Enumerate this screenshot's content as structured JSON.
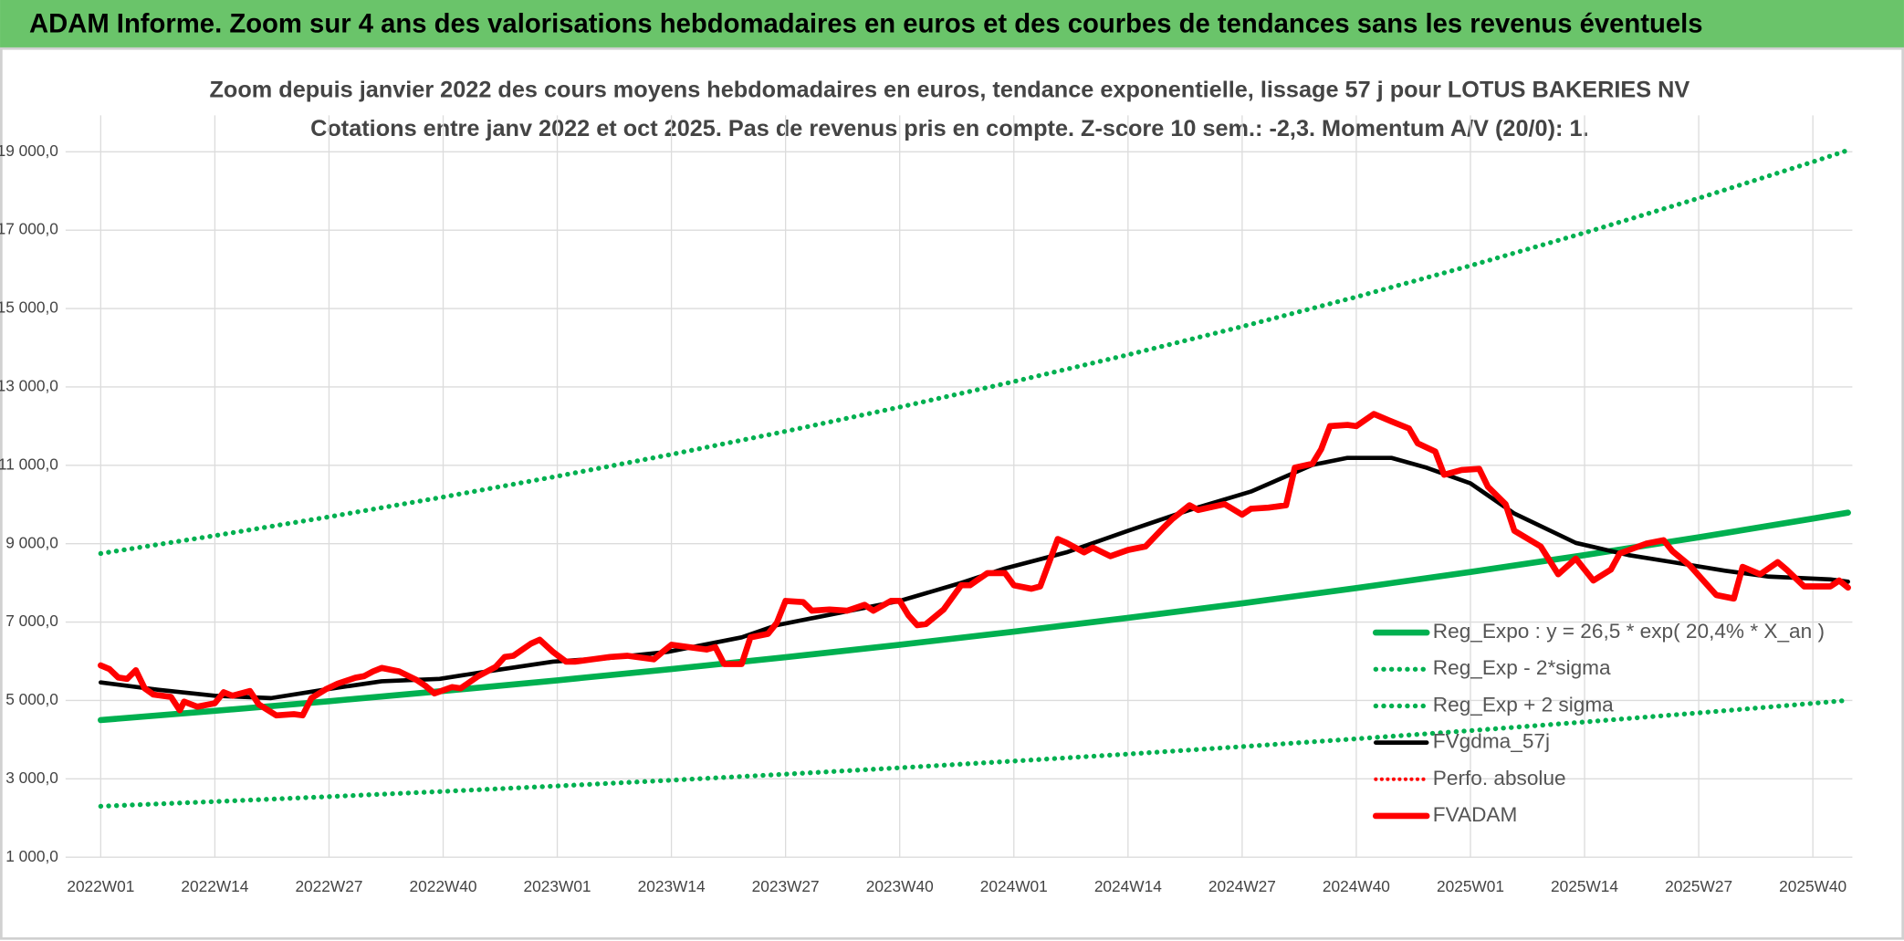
{
  "header": {
    "title": "ADAM Informe. Zoom sur 4 ans des valorisations hebdomadaires en euros et des courbes de tendances sans les revenus éventuels"
  },
  "chart_data": {
    "type": "line",
    "title": "Zoom depuis janvier 2022 des cours moyens hebdomadaires en euros, tendance exponentielle, lissage 57 j pour LOTUS BAKERIES NV",
    "subtitle": "Cotations entre janv 2022 et oct 2025. Pas de revenus pris en compte. Z-score 10 sem.: -2,3. Momentum A/V (20/0): 1.",
    "xlim": [
      -4,
      199.5
    ],
    "xticks": [
      {
        "value": 0,
        "label": "2022W01"
      },
      {
        "value": 13,
        "label": "2022W14"
      },
      {
        "value": 26,
        "label": "2022W27"
      },
      {
        "value": 39,
        "label": "2022W40"
      },
      {
        "value": 52,
        "label": "2023W01"
      },
      {
        "value": 65,
        "label": "2023W14"
      },
      {
        "value": 78,
        "label": "2023W27"
      },
      {
        "value": 91,
        "label": "2023W40"
      },
      {
        "value": 104,
        "label": "2024W01"
      },
      {
        "value": 117,
        "label": "2024W14"
      },
      {
        "value": 130,
        "label": "2024W27"
      },
      {
        "value": 143,
        "label": "2024W40"
      },
      {
        "value": 156,
        "label": "2025W01"
      },
      {
        "value": 169,
        "label": "2025W14"
      },
      {
        "value": 182,
        "label": "2025W27"
      },
      {
        "value": 195,
        "label": "2025W40"
      }
    ],
    "ylim": [
      1000,
      19000
    ],
    "yticks": [
      {
        "value": 1000,
        "label": "1 000,0"
      },
      {
        "value": 3000,
        "label": "3 000,0"
      },
      {
        "value": 5000,
        "label": "5 000,0"
      },
      {
        "value": 7000,
        "label": "7 000,0"
      },
      {
        "value": 9000,
        "label": "9 000,0"
      },
      {
        "value": 11000,
        "label": "11 000,0"
      },
      {
        "value": 13000,
        "label": "13 000,0"
      },
      {
        "value": 15000,
        "label": "15 000,0"
      },
      {
        "value": 17000,
        "label": "17 000,0"
      },
      {
        "value": 19000,
        "label": "19 000,0"
      }
    ],
    "grid": true,
    "legend": "lower right",
    "series": [
      {
        "name": "Reg_Expo : y = 26,5 * exp( 20,4% *  X_an )",
        "color": "#00b050",
        "style": "solid",
        "width": 5,
        "x": [
          0,
          13,
          26,
          39,
          52,
          65,
          78,
          91,
          104,
          117,
          130,
          143,
          156,
          169,
          182,
          195,
          199
        ],
        "values": [
          4500,
          4734,
          4981,
          5241,
          5514,
          5801,
          6103,
          6421,
          6756,
          7108,
          7478,
          7868,
          8278,
          8709,
          9163,
          9640,
          9792
        ]
      },
      {
        "name": "Reg_Exp - 2*sigma",
        "color": "#00b050",
        "style": "dotted",
        "width": 4,
        "x": [
          0,
          13,
          26,
          39,
          52,
          65,
          78,
          91,
          104,
          117,
          130,
          143,
          156,
          169,
          182,
          195,
          199
        ],
        "values": [
          2300,
          2420,
          2546,
          2679,
          2818,
          2965,
          3119,
          3282,
          3453,
          3632,
          3822,
          4021,
          4230,
          4451,
          4683,
          4926,
          5004
        ]
      },
      {
        "name": "Reg_Exp + 2 sigma",
        "color": "#00b050",
        "style": "dotted",
        "width": 4,
        "x": [
          0,
          13,
          26,
          39,
          52,
          65,
          78,
          91,
          104,
          117,
          130,
          143,
          156,
          169,
          182,
          195,
          199
        ],
        "values": [
          8750,
          9206,
          9685,
          10190,
          10721,
          11279,
          11867,
          12485,
          13136,
          13820,
          14540,
          15297,
          16094,
          16933,
          17815,
          18743,
          19040
        ]
      },
      {
        "name": "FVgdma_57j",
        "color": "#000000",
        "style": "solid",
        "width": 3.5,
        "x": [
          0,
          6.5,
          13,
          19.4,
          25.6,
          32,
          38.6,
          44,
          51.5,
          57.7,
          64.6,
          73,
          77,
          84,
          91,
          98,
          103,
          110,
          117,
          124,
          131,
          138,
          142,
          147,
          151,
          156,
          161,
          168,
          174,
          179,
          185,
          190,
          197,
          199
        ],
        "values": [
          5460,
          5275,
          5120,
          5060,
          5280,
          5490,
          5550,
          5740,
          5990,
          6080,
          6240,
          6610,
          6920,
          7230,
          7540,
          8000,
          8370,
          8780,
          9330,
          9860,
          10330,
          11010,
          11190,
          11190,
          10940,
          10540,
          9770,
          9020,
          8710,
          8530,
          8310,
          8160,
          8090,
          8030
        ]
      },
      {
        "name": "Perfo. absolue",
        "color": "#ff0000",
        "style": "dotted",
        "width": 3,
        "x": [],
        "values": []
      },
      {
        "name": "FVADAM",
        "color": "#ff0000",
        "style": "solid",
        "width": 5,
        "x": [
          0,
          1,
          2,
          3,
          4,
          5,
          6,
          8,
          9,
          9.5,
          11,
          13,
          14,
          15,
          17,
          18,
          20,
          22,
          23,
          24,
          25.6,
          27,
          29,
          30,
          31,
          32,
          34,
          36,
          37,
          38,
          40,
          41,
          43,
          45,
          46,
          47,
          49,
          50,
          51.5,
          53,
          54,
          56,
          58,
          60,
          63,
          64,
          65,
          67,
          69,
          70,
          71,
          73,
          74,
          76,
          77,
          78,
          80,
          81,
          83,
          85,
          87,
          88,
          90,
          91,
          92,
          93,
          94,
          96,
          98,
          99,
          101,
          103,
          104,
          106,
          107,
          109,
          110,
          112,
          113,
          115,
          117,
          119,
          121,
          122,
          124,
          125,
          128,
          130,
          131,
          133,
          135,
          136,
          138,
          139,
          140,
          142,
          143,
          145,
          147,
          149,
          150,
          152,
          153,
          155,
          157,
          158,
          160,
          161,
          164,
          166,
          168,
          170,
          172,
          173,
          176,
          178,
          179,
          181,
          182,
          184,
          186,
          187,
          189,
          191,
          192,
          194,
          197,
          198,
          199
        ],
        "values": [
          5895,
          5800,
          5585,
          5550,
          5770,
          5310,
          5150,
          5090,
          4750,
          4970,
          4840,
          4930,
          5210,
          5120,
          5240,
          4900,
          4620,
          4650,
          4620,
          5060,
          5280,
          5430,
          5580,
          5620,
          5740,
          5830,
          5740,
          5520,
          5370,
          5180,
          5340,
          5310,
          5620,
          5860,
          6110,
          6140,
          6450,
          6550,
          6240,
          5990,
          5990,
          6050,
          6110,
          6140,
          6050,
          6240,
          6420,
          6360,
          6300,
          6360,
          5930,
          5930,
          6610,
          6700,
          6980,
          7540,
          7510,
          7290,
          7320,
          7290,
          7440,
          7290,
          7540,
          7540,
          7170,
          6920,
          6950,
          7320,
          7940,
          7940,
          8250,
          8250,
          7940,
          7850,
          7910,
          9120,
          9020,
          8780,
          8900,
          8680,
          8840,
          8930,
          9400,
          9620,
          9980,
          9860,
          10010,
          9740,
          9890,
          9920,
          9980,
          10940,
          11040,
          11410,
          12000,
          12030,
          12000,
          12310,
          12120,
          11940,
          11560,
          11350,
          10760,
          10880,
          10910,
          10450,
          10010,
          9330,
          8930,
          8220,
          8620,
          8060,
          8340,
          8750,
          9000,
          9090,
          8810,
          8440,
          8190,
          7690,
          7600,
          8410,
          8220,
          8530,
          8340,
          7910,
          7910,
          8060,
          7880
        ]
      }
    ]
  }
}
